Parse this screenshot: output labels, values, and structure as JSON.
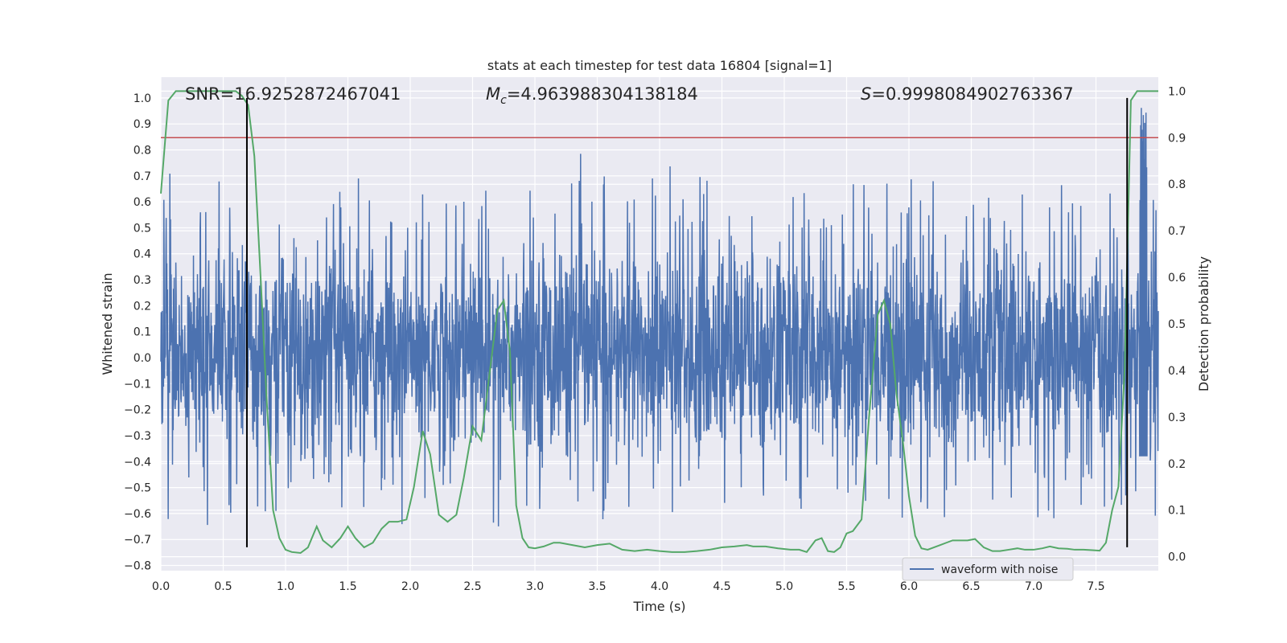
{
  "chart_data": {
    "type": "line",
    "title": "stats at each timestep for test data 16804 [signal=1]",
    "xlabel": "Time (s)",
    "ylabel": "Whitened strain",
    "y2label": "Detection probability",
    "xlim": [
      0.0,
      8.0
    ],
    "ylim": [
      -0.82,
      1.08
    ],
    "y2lim": [
      -0.03,
      1.03
    ],
    "xticks": [
      0.0,
      0.5,
      1.0,
      1.5,
      2.0,
      2.5,
      3.0,
      3.5,
      4.0,
      4.5,
      5.0,
      5.5,
      6.0,
      6.5,
      7.0,
      7.5
    ],
    "xtick_labels": [
      "0.0",
      "0.5",
      "1.0",
      "1.5",
      "2.0",
      "2.5",
      "3.0",
      "3.5",
      "4.0",
      "4.5",
      "5.0",
      "5.5",
      "6.0",
      "6.5",
      "7.0",
      "7.5"
    ],
    "yticks": [
      -0.8,
      -0.7,
      -0.6,
      -0.5,
      -0.4,
      -0.3,
      -0.2,
      -0.1,
      0.0,
      0.1,
      0.2,
      0.3,
      0.4,
      0.5,
      0.6,
      0.7,
      0.8,
      0.9,
      1.0
    ],
    "ytick_labels": [
      "−0.8",
      "−0.7",
      "−0.6",
      "−0.5",
      "−0.4",
      "−0.3",
      "−0.2",
      "−0.1",
      "0.0",
      "0.1",
      "0.2",
      "0.3",
      "0.4",
      "0.5",
      "0.6",
      "0.7",
      "0.8",
      "0.9",
      "1.0"
    ],
    "y2ticks": [
      0.0,
      0.1,
      0.2,
      0.3,
      0.4,
      0.5,
      0.6,
      0.7,
      0.8,
      0.9,
      1.0
    ],
    "y2tick_labels": [
      "0.0",
      "0.1",
      "0.2",
      "0.3",
      "0.4",
      "0.5",
      "0.6",
      "0.7",
      "0.8",
      "0.9",
      "1.0"
    ],
    "grid": true,
    "legend": {
      "placement": "lower-right",
      "entries": [
        "waveform with noise"
      ]
    },
    "annotations": {
      "snr": "SNR=16.9252872467041",
      "mc_symbol": "M",
      "mc_subscript": "c",
      "mc_value": "=4.963988304138184",
      "s_symbol": "S",
      "s_value": "=0.9998084902763367"
    },
    "threshold": {
      "axis": "y2",
      "value": 0.9,
      "color": "#c44e52"
    },
    "vertical_markers": {
      "x": [
        0.69,
        7.75
      ],
      "y_range": [
        -0.73,
        1.0
      ],
      "color": "#000000"
    },
    "waveform": {
      "name": "waveform with noise",
      "axis": "y",
      "color": "#4c72b0",
      "x_range": [
        0.0,
        8.0
      ],
      "typical_envelope": [
        -0.38,
        0.42
      ],
      "transient": {
        "x": 7.88,
        "max": 1.0
      }
    },
    "probability": {
      "axis": "y2",
      "color": "#55a868",
      "x": [
        0.0,
        0.06,
        0.12,
        0.2,
        0.3,
        0.4,
        0.5,
        0.6,
        0.65,
        0.7,
        0.75,
        0.8,
        0.85,
        0.9,
        0.95,
        1.0,
        1.05,
        1.12,
        1.18,
        1.25,
        1.3,
        1.37,
        1.44,
        1.5,
        1.56,
        1.63,
        1.7,
        1.77,
        1.83,
        1.9,
        1.97,
        2.03,
        2.1,
        2.16,
        2.23,
        2.3,
        2.37,
        2.43,
        2.5,
        2.57,
        2.63,
        2.7,
        2.75,
        2.8,
        2.85,
        2.9,
        2.95,
        3.0,
        3.07,
        3.15,
        3.2,
        3.3,
        3.4,
        3.5,
        3.6,
        3.7,
        3.8,
        3.9,
        4.0,
        4.1,
        4.2,
        4.3,
        4.4,
        4.5,
        4.6,
        4.7,
        4.75,
        4.85,
        4.95,
        5.05,
        5.12,
        5.18,
        5.25,
        5.3,
        5.35,
        5.4,
        5.45,
        5.5,
        5.55,
        5.62,
        5.68,
        5.75,
        5.8,
        5.85,
        5.9,
        5.95,
        6.0,
        6.05,
        6.1,
        6.15,
        6.2,
        6.25,
        6.3,
        6.35,
        6.4,
        6.47,
        6.53,
        6.6,
        6.67,
        6.73,
        6.8,
        6.87,
        6.93,
        7.0,
        7.07,
        7.13,
        7.2,
        7.27,
        7.33,
        7.4,
        7.47,
        7.53,
        7.58,
        7.63,
        7.68,
        7.73,
        7.78,
        7.83,
        7.87,
        7.92,
        8.0
      ],
      "y": [
        0.78,
        0.98,
        1.0,
        1.0,
        1.0,
        1.0,
        1.0,
        1.0,
        0.99,
        0.97,
        0.86,
        0.6,
        0.33,
        0.1,
        0.04,
        0.015,
        0.01,
        0.008,
        0.02,
        0.065,
        0.035,
        0.02,
        0.04,
        0.065,
        0.04,
        0.02,
        0.03,
        0.06,
        0.075,
        0.075,
        0.08,
        0.15,
        0.27,
        0.22,
        0.09,
        0.075,
        0.09,
        0.17,
        0.28,
        0.25,
        0.38,
        0.53,
        0.55,
        0.44,
        0.11,
        0.04,
        0.02,
        0.018,
        0.022,
        0.03,
        0.03,
        0.025,
        0.02,
        0.025,
        0.028,
        0.015,
        0.012,
        0.015,
        0.012,
        0.01,
        0.01,
        0.012,
        0.015,
        0.02,
        0.022,
        0.025,
        0.022,
        0.022,
        0.018,
        0.015,
        0.015,
        0.01,
        0.035,
        0.04,
        0.012,
        0.01,
        0.02,
        0.05,
        0.055,
        0.08,
        0.3,
        0.52,
        0.55,
        0.5,
        0.35,
        0.25,
        0.13,
        0.045,
        0.018,
        0.015,
        0.02,
        0.025,
        0.03,
        0.035,
        0.035,
        0.035,
        0.038,
        0.02,
        0.012,
        0.012,
        0.015,
        0.018,
        0.015,
        0.015,
        0.018,
        0.022,
        0.018,
        0.017,
        0.015,
        0.015,
        0.014,
        0.013,
        0.03,
        0.1,
        0.15,
        0.4,
        0.98,
        1.0,
        1.0,
        1.0,
        1.0
      ]
    }
  },
  "colors": {
    "plot_background": "#eaeaf2",
    "grid": "#ffffff",
    "waveform": "#4c72b0",
    "probability": "#55a868",
    "threshold": "#c44e52",
    "markers": "#000000"
  }
}
